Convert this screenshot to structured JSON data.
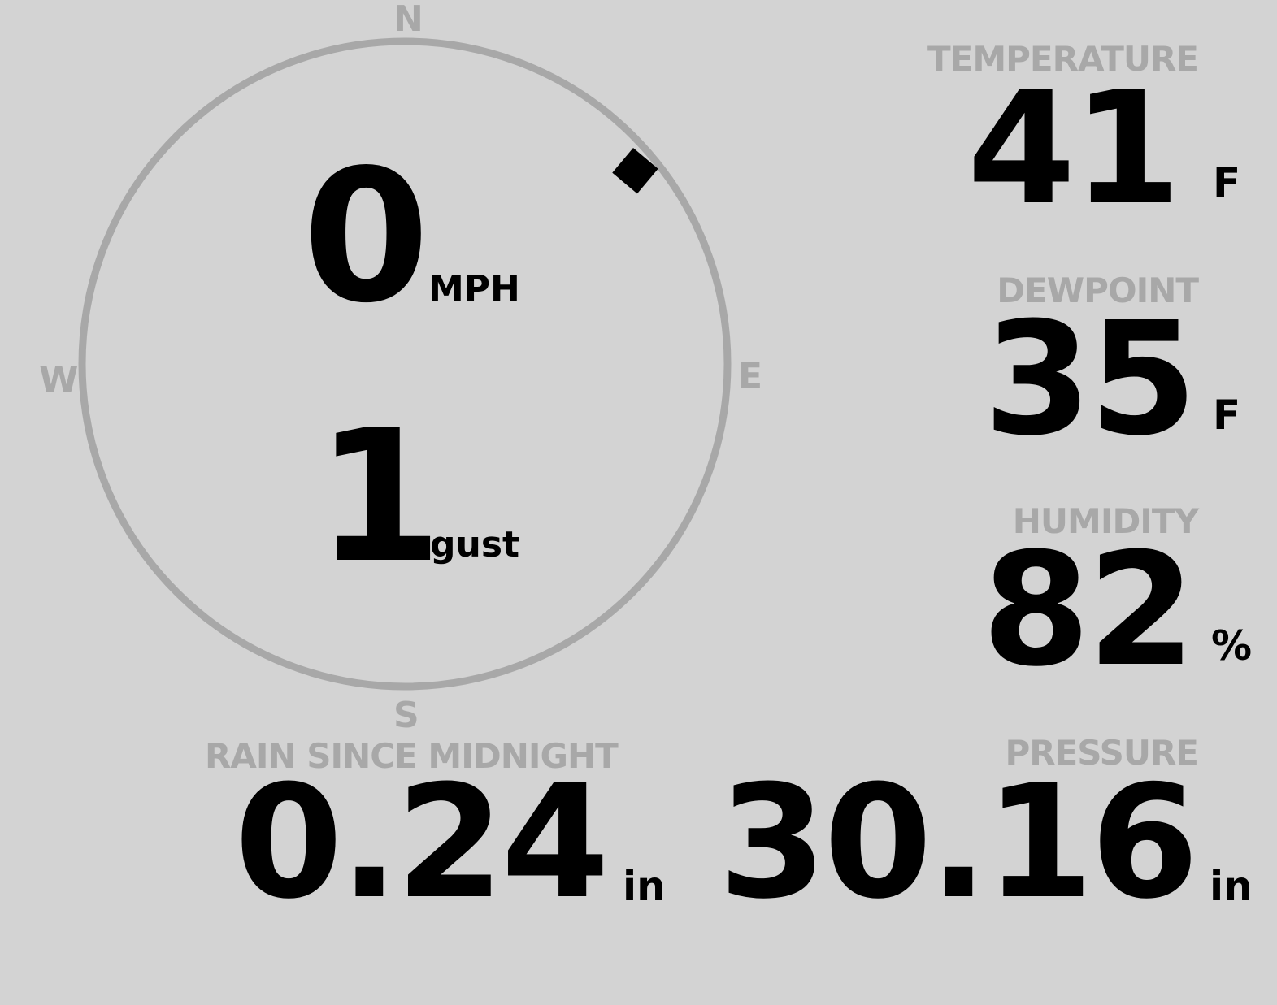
{
  "compass": {
    "north": "N",
    "east": "E",
    "south": "S",
    "west": "W",
    "wind_direction_degrees": 50,
    "ring_color": "#a8a8a8"
  },
  "wind": {
    "speed": "0",
    "speed_unit": "MPH",
    "gust": "1",
    "gust_unit": "gust"
  },
  "temperature": {
    "label": "TEMPERATURE",
    "value": "41",
    "unit": "F"
  },
  "dewpoint": {
    "label": "DEWPOINT",
    "value": "35",
    "unit": "F"
  },
  "humidity": {
    "label": "HUMIDITY",
    "value": "82",
    "unit": "%"
  },
  "rain": {
    "label": "RAIN SINCE MIDNIGHT",
    "value": "0.24",
    "unit": "in"
  },
  "pressure": {
    "label": "PRESSURE",
    "value": "30.16",
    "unit": "in"
  },
  "colors": {
    "background": "#d3d3d3",
    "label": "#a8a8a8",
    "value": "#000000"
  }
}
